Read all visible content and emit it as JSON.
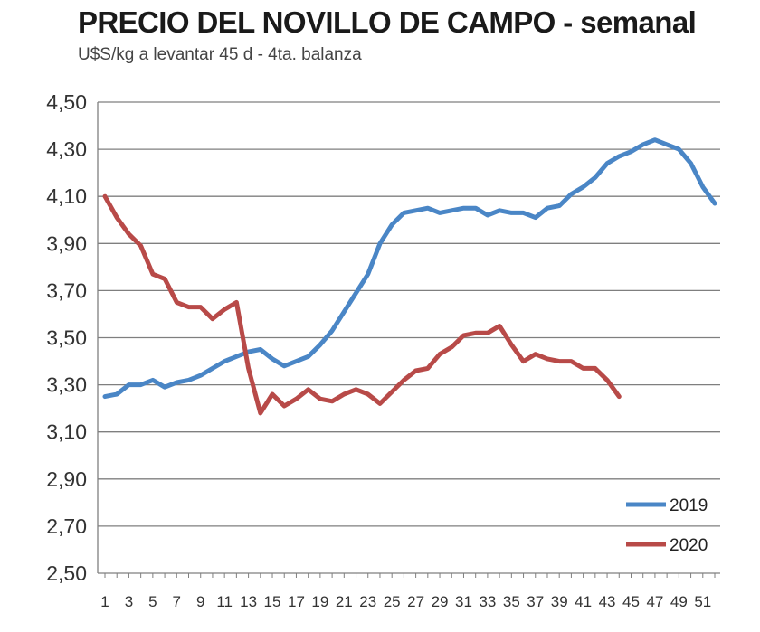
{
  "chart_data": {
    "type": "line",
    "title": "PRECIO DEL NOVILLO DE CAMPO - semanal",
    "subtitle": "U$S/kg a levantar 45 d - 4ta. balanza",
    "ylim": [
      2.5,
      4.5
    ],
    "y_ticks": [
      "4,50",
      "4,30",
      "4,10",
      "3,90",
      "3,70",
      "3,50",
      "3,30",
      "3,10",
      "2,90",
      "2,70",
      "2,50"
    ],
    "x_ticks": [
      "1",
      "3",
      "5",
      "7",
      "9",
      "11",
      "13",
      "15",
      "17",
      "19",
      "21",
      "23",
      "25",
      "27",
      "29",
      "31",
      "33",
      "35",
      "37",
      "39",
      "41",
      "43",
      "45",
      "47",
      "49",
      "51"
    ],
    "grid": true,
    "legend_position": "bottom-right",
    "series": [
      {
        "name": "2019",
        "color": "#4a86c6",
        "x": [
          1,
          2,
          3,
          4,
          5,
          6,
          7,
          8,
          9,
          10,
          11,
          12,
          13,
          14,
          15,
          16,
          17,
          18,
          19,
          20,
          21,
          22,
          23,
          24,
          25,
          26,
          27,
          28,
          29,
          30,
          31,
          32,
          33,
          34,
          35,
          36,
          37,
          38,
          39,
          40,
          41,
          42,
          43,
          44,
          45,
          46,
          47,
          48,
          49,
          50,
          51,
          52
        ],
        "values": [
          3.25,
          3.26,
          3.3,
          3.3,
          3.32,
          3.29,
          3.31,
          3.32,
          3.34,
          3.37,
          3.4,
          3.42,
          3.44,
          3.45,
          3.41,
          3.38,
          3.4,
          3.42,
          3.47,
          3.53,
          3.61,
          3.69,
          3.77,
          3.9,
          3.98,
          4.03,
          4.04,
          4.05,
          4.03,
          4.04,
          4.05,
          4.05,
          4.02,
          4.04,
          4.03,
          4.03,
          4.01,
          4.05,
          4.06,
          4.11,
          4.14,
          4.18,
          4.24,
          4.27,
          4.29,
          4.32,
          4.34,
          4.32,
          4.3,
          4.24,
          4.14,
          4.07
        ]
      },
      {
        "name": "2020",
        "color": "#b84a48",
        "x": [
          1,
          2,
          3,
          4,
          5,
          6,
          7,
          8,
          9,
          10,
          11,
          12,
          13,
          14,
          15,
          16,
          17,
          18,
          19,
          20,
          21,
          22,
          23,
          24,
          25,
          26,
          27,
          28,
          29,
          30,
          31,
          32,
          33,
          34,
          35,
          36,
          37,
          38,
          39,
          40,
          41,
          42,
          43,
          44
        ],
        "values": [
          4.1,
          4.01,
          3.94,
          3.89,
          3.77,
          3.75,
          3.65,
          3.63,
          3.63,
          3.58,
          3.62,
          3.65,
          3.37,
          3.18,
          3.26,
          3.21,
          3.24,
          3.28,
          3.24,
          3.23,
          3.26,
          3.28,
          3.26,
          3.22,
          3.27,
          3.32,
          3.36,
          3.37,
          3.43,
          3.46,
          3.51,
          3.52,
          3.52,
          3.55,
          3.47,
          3.4,
          3.43,
          3.41,
          3.4,
          3.4,
          3.37,
          3.37,
          3.32,
          3.25
        ]
      }
    ]
  }
}
